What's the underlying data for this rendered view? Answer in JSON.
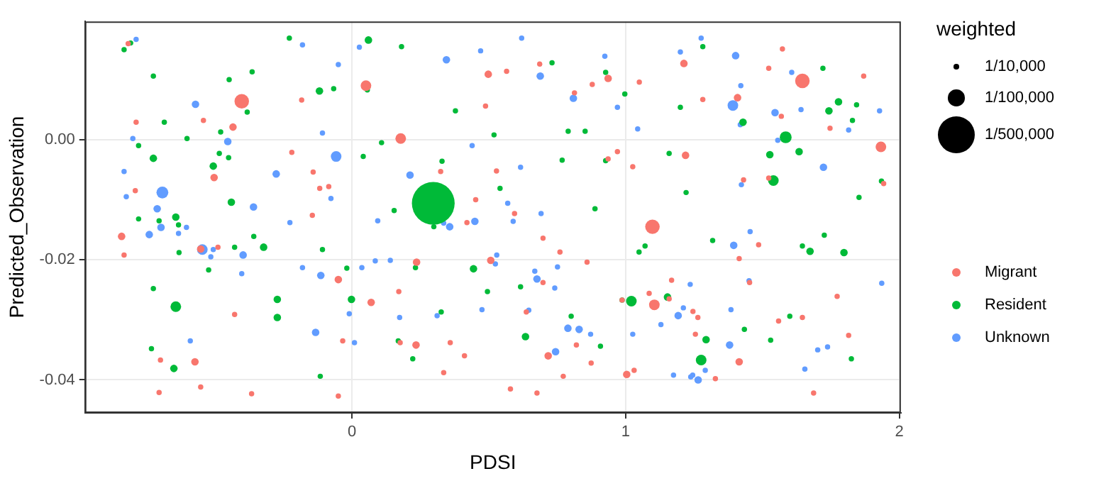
{
  "chart_data": {
    "type": "bubble",
    "xlabel": "PDSI",
    "ylabel": "Predicted_Observation",
    "legend_title": "weighted",
    "legend": "right",
    "grid": true,
    "xlim": [
      -0.976,
      2.006
    ],
    "xticks": [
      0,
      1,
      2
    ],
    "ylim": [
      -0.0455,
      0.0197
    ],
    "yticks": [
      {
        "value": -0.04,
        "label": "-0.04"
      },
      {
        "value": -0.02,
        "label": "-0.02"
      },
      {
        "value": 0,
        "label": "0.00"
      }
    ],
    "size_legend": [
      {
        "value": 10000,
        "label": "1/10,000"
      },
      {
        "value": 100000,
        "label": "1/100,000"
      },
      {
        "value": 500000,
        "label": "1/500,000"
      }
    ],
    "series": [
      {
        "name": "Migrant",
        "color": "#f8766d",
        "x": [
          -0.818,
          -0.184,
          -0.403,
          -0.789,
          -0.543,
          -0.435,
          -0.22,
          -0.504,
          -0.142,
          -0.118,
          -0.085,
          -0.792,
          -0.145,
          -0.842,
          -0.833,
          -0.553,
          -0.49,
          -0.05,
          -0.429,
          -0.034,
          -0.7,
          -0.574,
          -0.553,
          -0.705,
          -0.367,
          -0.05,
          0.686,
          0.498,
          0.565,
          0.936,
          0.878,
          0.051,
          0.813,
          0.488,
          0.178,
          0.324,
          0.528,
          0.97,
          0.936,
          1.026,
          0.452,
          0.594,
          0.42,
          0.698,
          0.76,
          0.859,
          0.507,
          0.236,
          0.698,
          0.171,
          0.07,
          0.637,
          0.987,
          0.82,
          0.717,
          0.874,
          0.359,
          0.234,
          0.176,
          0.411,
          0.335,
          0.772,
          1.004,
          0.579,
          0.676,
          1.213,
          1.573,
          1.523,
          1.646,
          1.87,
          1.05,
          1.282,
          1.409,
          1.569,
          1.747,
          1.933,
          1.219,
          1.523,
          1.431,
          1.943,
          1.098,
          1.486,
          1.415,
          1.168,
          1.086,
          1.105,
          1.159,
          1.246,
          1.264,
          1.453,
          1.255,
          1.415,
          1.328,
          1.031,
          1.559,
          1.646,
          1.773,
          1.815,
          1.687
        ],
        "values": [
          0.016,
          0.0066,
          0.0064,
          0.0029,
          0.0032,
          0.0021,
          -0.0021,
          -0.0063,
          -0.0054,
          -0.0081,
          -0.0078,
          -0.0085,
          -0.0126,
          -0.0161,
          -0.0192,
          -0.0182,
          -0.0179,
          -0.0233,
          -0.0291,
          -0.0335,
          -0.0367,
          -0.037,
          -0.0412,
          -0.0421,
          -0.0423,
          -0.0427,
          0.0126,
          0.0109,
          0.0114,
          0.0102,
          0.0092,
          0.009,
          0.0078,
          0.0056,
          0.0002,
          -0.0053,
          -0.0052,
          -0.002,
          -0.0032,
          -0.0045,
          -0.01,
          -0.0123,
          -0.0138,
          -0.0164,
          -0.0187,
          -0.0204,
          -0.0201,
          -0.0204,
          -0.0238,
          -0.0253,
          -0.0271,
          -0.0287,
          -0.0267,
          -0.0342,
          -0.036,
          -0.0372,
          -0.0338,
          -0.0342,
          -0.0338,
          -0.036,
          -0.0388,
          -0.0394,
          -0.0391,
          -0.0415,
          -0.0422,
          0.0127,
          0.0151,
          0.0119,
          0.0098,
          0.0106,
          0.0096,
          0.0067,
          0.007,
          0.0039,
          0.0019,
          -0.0012,
          -0.0026,
          -0.0064,
          -0.0067,
          -0.0073,
          -0.0145,
          -0.0175,
          -0.0198,
          -0.0234,
          -0.0256,
          -0.0275,
          -0.0265,
          -0.0286,
          -0.0296,
          -0.0238,
          -0.0324,
          -0.037,
          -0.0398,
          -0.0384,
          -0.0302,
          -0.0296,
          -0.0261,
          -0.0326,
          -0.0422
        ],
        "sizes": [
          10000,
          10000,
          75000,
          10000,
          10000,
          20000,
          10000,
          20000,
          10000,
          10000,
          10000,
          10000,
          10000,
          20000,
          10000,
          20000,
          10000,
          20000,
          10000,
          10000,
          10000,
          20000,
          10000,
          10000,
          10000,
          10000,
          10000,
          20000,
          10000,
          20000,
          10000,
          40000,
          10000,
          10000,
          40000,
          10000,
          10000,
          10000,
          10000,
          10000,
          10000,
          10000,
          10000,
          10000,
          10000,
          10000,
          20000,
          20000,
          10000,
          10000,
          20000,
          10000,
          10000,
          10000,
          20000,
          10000,
          10000,
          20000,
          10000,
          10000,
          10000,
          10000,
          20000,
          10000,
          10000,
          20000,
          10000,
          10000,
          75000,
          10000,
          10000,
          10000,
          20000,
          10000,
          10000,
          40000,
          20000,
          10000,
          10000,
          10000,
          75000,
          10000,
          10000,
          10000,
          10000,
          40000,
          10000,
          10000,
          10000,
          10000,
          10000,
          20000,
          10000,
          10000,
          10000,
          10000,
          10000,
          10000,
          10000
        ]
      },
      {
        "name": "Resident",
        "color": "#00ba38",
        "x": [
          -0.809,
          -0.833,
          -0.726,
          -0.449,
          -0.365,
          -0.229,
          -0.119,
          -0.067,
          -0.383,
          -0.686,
          -0.48,
          -0.603,
          -0.78,
          -0.726,
          -0.485,
          -0.451,
          -0.507,
          -0.441,
          -0.78,
          -0.644,
          -0.705,
          -0.634,
          -0.632,
          -0.359,
          -0.429,
          -0.323,
          -0.108,
          -0.524,
          -0.019,
          -0.726,
          -0.644,
          -0.273,
          -0.273,
          -0.002,
          -0.733,
          -0.651,
          -0.116,
          0.06,
          0.181,
          0.731,
          0.927,
          0.056,
          0.997,
          0.378,
          0.519,
          0.79,
          0.852,
          0.108,
          0.041,
          0.329,
          0.768,
          0.927,
          0.541,
          0.297,
          0.888,
          0.154,
          0.299,
          0.232,
          0.444,
          0.616,
          0.495,
          0.326,
          0.801,
          0.987,
          1.021,
          0.634,
          0.908,
          0.169,
          0.222,
          1.282,
          1.721,
          1.2,
          1.429,
          1.778,
          1.844,
          1.743,
          1.829,
          1.585,
          1.634,
          1.527,
          1.159,
          1.54,
          1.221,
          1.935,
          1.853,
          1.071,
          1.049,
          1.318,
          1.646,
          1.674,
          1.726,
          1.798,
          1.153,
          1.294,
          1.434,
          1.276,
          1.53,
          1.6,
          1.825
        ],
        "values": [
          0.0161,
          0.015,
          0.0106,
          0.01,
          0.0113,
          0.0169,
          0.0081,
          0.0085,
          0.0046,
          0.0029,
          0.0013,
          0.0002,
          -0.001,
          -0.0031,
          -0.0023,
          -0.003,
          -0.0044,
          -0.0104,
          -0.0132,
          -0.0129,
          -0.0135,
          -0.0142,
          -0.0188,
          -0.0161,
          -0.0179,
          -0.0179,
          -0.0183,
          -0.0217,
          -0.0214,
          -0.0248,
          -0.0278,
          -0.0266,
          -0.0296,
          -0.0266,
          -0.0348,
          -0.0381,
          -0.0394,
          0.0166,
          0.0155,
          0.0128,
          0.0112,
          0.0083,
          0.0076,
          0.0048,
          0.0008,
          0.0014,
          0.0014,
          -0.0005,
          -0.0028,
          -0.0036,
          -0.0034,
          -0.0035,
          -0.0081,
          -0.0106,
          -0.0115,
          -0.0118,
          -0.0145,
          -0.0213,
          -0.0215,
          -0.0245,
          -0.0253,
          -0.0287,
          -0.0294,
          -0.0267,
          -0.0269,
          -0.0328,
          -0.0344,
          -0.0335,
          -0.0365,
          0.0155,
          0.0119,
          0.0054,
          0.0029,
          0.0063,
          0.0058,
          0.0048,
          0.0032,
          0.0004,
          -0.002,
          -0.0025,
          -0.0023,
          -0.0068,
          -0.0088,
          -0.0069,
          -0.0096,
          -0.0177,
          -0.0187,
          -0.0168,
          -0.0177,
          -0.0186,
          -0.0159,
          -0.0188,
          -0.0262,
          -0.0333,
          -0.0316,
          -0.0367,
          -0.0334,
          -0.0294,
          -0.0365
        ],
        "sizes": [
          10000,
          10000,
          10000,
          10000,
          10000,
          10000,
          20000,
          10000,
          10000,
          10000,
          10000,
          10000,
          10000,
          20000,
          10000,
          10000,
          20000,
          20000,
          10000,
          20000,
          10000,
          10000,
          10000,
          10000,
          10000,
          20000,
          10000,
          10000,
          10000,
          10000,
          40000,
          20000,
          20000,
          20000,
          10000,
          20000,
          10000,
          20000,
          10000,
          10000,
          10000,
          10000,
          10000,
          10000,
          10000,
          10000,
          10000,
          10000,
          10000,
          10000,
          10000,
          10000,
          10000,
          650000,
          10000,
          10000,
          10000,
          10000,
          20000,
          10000,
          10000,
          10000,
          10000,
          10000,
          40000,
          20000,
          10000,
          10000,
          10000,
          10000,
          10000,
          10000,
          20000,
          20000,
          10000,
          20000,
          10000,
          50000,
          20000,
          20000,
          10000,
          40000,
          10000,
          10000,
          10000,
          10000,
          10000,
          10000,
          10000,
          20000,
          10000,
          20000,
          20000,
          20000,
          10000,
          40000,
          10000,
          10000,
          10000
        ]
      },
      {
        "name": "Unknown",
        "color": "#619cff",
        "x": [
          -0.789,
          -0.181,
          -0.05,
          -0.572,
          -0.108,
          -0.801,
          -0.454,
          -0.058,
          -0.833,
          -0.277,
          -0.693,
          -0.825,
          -0.077,
          -0.36,
          -0.712,
          -0.605,
          -0.698,
          -0.741,
          -0.634,
          -0.547,
          -0.507,
          -0.516,
          -0.398,
          -0.227,
          -0.403,
          -0.181,
          -0.114,
          -0.01,
          -0.133,
          0.009,
          -0.591,
          0.027,
          0.345,
          0.47,
          0.62,
          0.688,
          0.924,
          0.809,
          0.97,
          0.439,
          0.212,
          0.616,
          0.569,
          0.691,
          0.094,
          0.449,
          0.335,
          0.357,
          0.589,
          0.529,
          0.524,
          0.085,
          0.14,
          0.036,
          0.668,
          0.751,
          0.676,
          0.741,
          0.475,
          0.646,
          0.311,
          0.174,
          0.789,
          0.83,
          0.872,
          1.026,
          0.744,
          1.276,
          1.2,
          1.402,
          1.607,
          1.421,
          1.392,
          1.419,
          1.044,
          1.546,
          1.641,
          1.928,
          1.815,
          1.556,
          1.723,
          1.423,
          1.395,
          1.455,
          1.236,
          1.211,
          1.192,
          1.385,
          1.451,
          1.129,
          1.38,
          1.291,
          1.175,
          1.245,
          1.238,
          1.265,
          1.936,
          1.702,
          1.738,
          1.655
        ],
        "values": [
          0.0167,
          0.0158,
          0.0125,
          0.0059,
          0.0011,
          0.0002,
          -0.0003,
          -0.0028,
          -0.0053,
          -0.0057,
          -0.0088,
          -0.0095,
          -0.0098,
          -0.0112,
          -0.0115,
          -0.0146,
          -0.0146,
          -0.0158,
          -0.0156,
          -0.0183,
          -0.0183,
          -0.0195,
          -0.0192,
          -0.0138,
          -0.0223,
          -0.0213,
          -0.0226,
          -0.029,
          -0.0321,
          -0.0338,
          -0.0335,
          0.0154,
          0.0133,
          0.0148,
          0.0169,
          0.0106,
          0.0139,
          0.0069,
          0.0054,
          -0.001,
          -0.0059,
          -0.0046,
          -0.0106,
          -0.0123,
          -0.0135,
          -0.0136,
          -0.0139,
          -0.0145,
          -0.0136,
          -0.0192,
          -0.0207,
          -0.0202,
          -0.0201,
          -0.0213,
          -0.0219,
          -0.0212,
          -0.0232,
          -0.0247,
          -0.0283,
          -0.0284,
          -0.0293,
          -0.0296,
          -0.0314,
          -0.0316,
          -0.0324,
          -0.0324,
          -0.0353,
          0.0169,
          0.0146,
          0.014,
          0.0112,
          0.009,
          0.0057,
          0.0025,
          0.0018,
          0.0045,
          0.005,
          0.0048,
          0.0016,
          -0.0001,
          -0.0046,
          -0.0075,
          -0.0176,
          -0.0153,
          -0.0241,
          -0.028,
          -0.0293,
          -0.0283,
          -0.0235,
          -0.0308,
          -0.0342,
          -0.0384,
          -0.0392,
          -0.0392,
          -0.0395,
          -0.04,
          -0.0239,
          -0.035,
          -0.0345,
          -0.0382
        ],
        "sizes": [
          10000,
          10000,
          10000,
          20000,
          10000,
          10000,
          20000,
          40000,
          10000,
          20000,
          50000,
          10000,
          10000,
          20000,
          20000,
          10000,
          20000,
          20000,
          10000,
          40000,
          10000,
          10000,
          20000,
          10000,
          10000,
          10000,
          20000,
          10000,
          20000,
          10000,
          10000,
          10000,
          20000,
          10000,
          10000,
          20000,
          10000,
          20000,
          10000,
          10000,
          20000,
          10000,
          10000,
          10000,
          10000,
          20000,
          10000,
          20000,
          10000,
          10000,
          10000,
          10000,
          10000,
          10000,
          10000,
          10000,
          20000,
          10000,
          10000,
          10000,
          10000,
          10000,
          20000,
          20000,
          10000,
          10000,
          20000,
          10000,
          10000,
          20000,
          10000,
          10000,
          40000,
          10000,
          10000,
          20000,
          10000,
          10000,
          10000,
          10000,
          20000,
          10000,
          20000,
          10000,
          10000,
          10000,
          20000,
          10000,
          10000,
          10000,
          20000,
          10000,
          10000,
          10000,
          10000,
          20000,
          10000,
          10000,
          10000,
          10000
        ]
      }
    ]
  }
}
